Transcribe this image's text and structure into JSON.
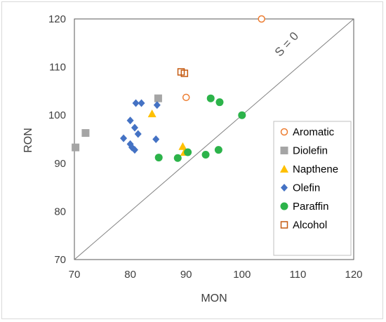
{
  "chart_data": {
    "type": "scatter",
    "xlabel": "MON",
    "ylabel": "RON",
    "xlim": [
      70,
      120
    ],
    "ylim": [
      70,
      120
    ],
    "xticks": [
      70,
      80,
      90,
      100,
      110,
      120
    ],
    "yticks": [
      70,
      80,
      90,
      100,
      110,
      120
    ],
    "grid": false,
    "legend_position": "right",
    "annotation": {
      "text": "S = 0",
      "line": [
        [
          70,
          70
        ],
        [
          120,
          120
        ]
      ],
      "color": "#808080"
    },
    "series": [
      {
        "name": "Aromatic",
        "marker": "circle-open",
        "color": "#ED7D31",
        "points": [
          [
            103.5,
            120.0
          ],
          [
            90.0,
            103.7
          ]
        ]
      },
      {
        "name": "Diolefin",
        "marker": "square",
        "color": "#A5A5A5",
        "points": [
          [
            70.2,
            93.3
          ],
          [
            72.0,
            96.3
          ],
          [
            85.0,
            103.5
          ]
        ]
      },
      {
        "name": "Napthene",
        "marker": "triangle",
        "color": "#FFC000",
        "points": [
          [
            83.9,
            100.3
          ],
          [
            89.4,
            93.5
          ],
          [
            89.7,
            92.3
          ]
        ]
      },
      {
        "name": "Olefin",
        "marker": "diamond",
        "color": "#4472C4",
        "points": [
          [
            81.0,
            102.5
          ],
          [
            82.0,
            102.5
          ],
          [
            84.8,
            102.1
          ],
          [
            80.0,
            98.9
          ],
          [
            80.8,
            97.4
          ],
          [
            81.4,
            96.1
          ],
          [
            78.8,
            95.2
          ],
          [
            84.6,
            95.0
          ],
          [
            80.0,
            94.0
          ],
          [
            80.3,
            93.3
          ],
          [
            80.8,
            92.8
          ]
        ]
      },
      {
        "name": "Paraffin",
        "marker": "circle",
        "color": "#2CB34A",
        "points": [
          [
            94.4,
            103.5
          ],
          [
            96.0,
            102.7
          ],
          [
            100.0,
            100.0
          ],
          [
            85.1,
            91.2
          ],
          [
            88.5,
            91.1
          ],
          [
            90.3,
            92.3
          ],
          [
            93.5,
            91.8
          ],
          [
            95.8,
            92.8
          ]
        ]
      },
      {
        "name": "Alcohol",
        "marker": "square-open",
        "color": "#C55A11",
        "points": [
          [
            89.1,
            109.0
          ],
          [
            89.7,
            108.7
          ]
        ]
      }
    ]
  }
}
